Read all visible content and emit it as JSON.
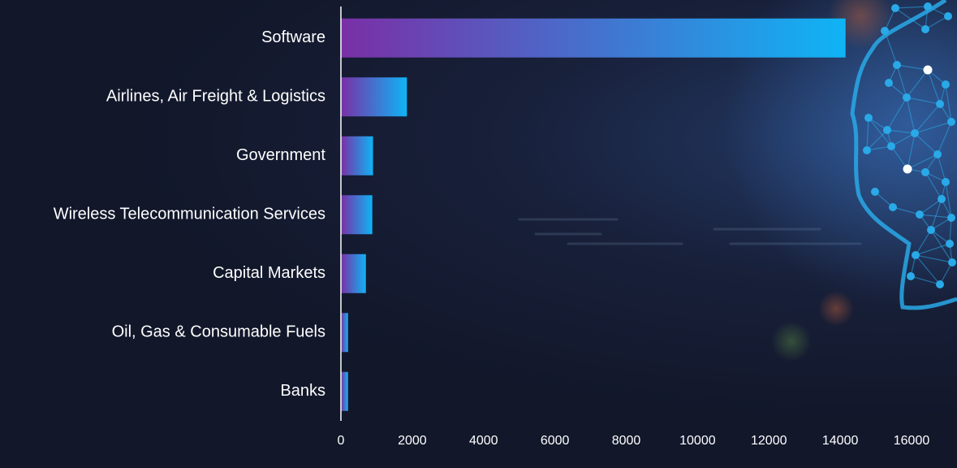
{
  "chart_data": {
    "type": "bar",
    "orientation": "horizontal",
    "categories": [
      "Software",
      "Airlines, Air Freight & Logistics",
      "Government",
      "Wireless Telecommunication Services",
      "Capital Markets",
      "Oil, Gas & Consumable Fuels",
      "Banks"
    ],
    "values": [
      14150,
      1850,
      900,
      880,
      700,
      200,
      200
    ],
    "xlim": [
      0,
      16000
    ],
    "xticks": [
      "0",
      "2000",
      "4000",
      "6000",
      "8000",
      "10000",
      "12000",
      "14000",
      "16000"
    ],
    "title": "",
    "xlabel": "",
    "ylabel": "",
    "grid": false,
    "legend": "none"
  },
  "colors": {
    "background": "#12172a",
    "bar_gradient_start": "#7a2fa6",
    "bar_gradient_end": "#0fb4f5",
    "axis": "#ffffff",
    "text": "#ffffff",
    "network_accent": "#29a9e8"
  },
  "decoration": {
    "background_art": "network-globe-illustration"
  }
}
